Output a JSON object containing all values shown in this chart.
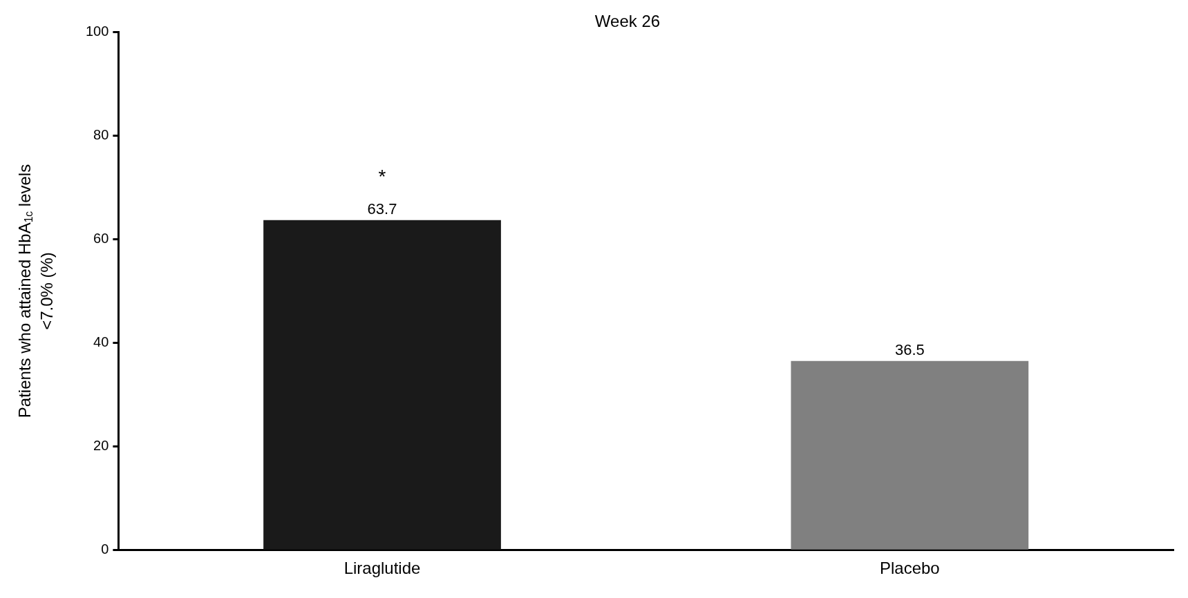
{
  "chart_data": {
    "type": "bar",
    "title": "Week 26",
    "ylabel": "Patients who attained HbA$_{1c}$ levels <7.0% (%)",
    "categories": [
      "Liraglutide",
      "Placebo"
    ],
    "values": [
      63.7,
      36.5
    ],
    "colors": [
      "#1a1a1a",
      "#808080"
    ],
    "ylim": [
      0,
      100
    ],
    "yticks": [
      0,
      20,
      40,
      60,
      80,
      100
    ],
    "grid": false,
    "legend": false,
    "data_labels": true,
    "annotations": [
      "*"
    ]
  }
}
